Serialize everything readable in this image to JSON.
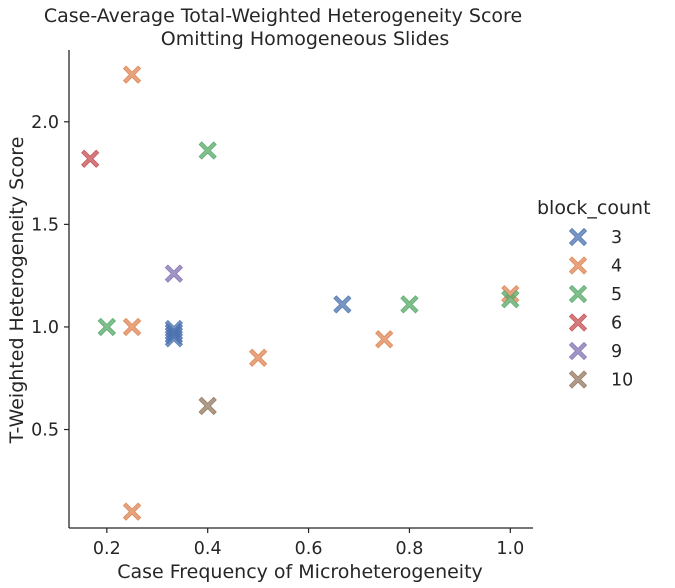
{
  "chart_data": {
    "type": "scatter",
    "title": "Case-Average Total-Weighted Heterogeneity Score",
    "subtitle": "Omitting Homogeneous Slides",
    "xlabel": "Case Frequency of Microheterogeneity",
    "ylabel": "T-Weighted Heterogeneity Score",
    "xlim": [
      0.125,
      1.045
    ],
    "ylim": [
      0.02,
      2.35
    ],
    "xticks": [
      0.2,
      0.4,
      0.6,
      0.8,
      1.0
    ],
    "xtick_labels": [
      "0.2",
      "0.4",
      "0.6",
      "0.8",
      "1.0"
    ],
    "yticks": [
      0.5,
      1.0,
      1.5,
      2.0
    ],
    "ytick_labels": [
      "0.5",
      "1.0",
      "1.5",
      "2.0"
    ],
    "grid": false,
    "marker": "X",
    "legend_title": "block_count",
    "legend_position": "right",
    "series": [
      {
        "name": "3",
        "color": "#4c72b0",
        "points": [
          [
            0.333,
            0.99
          ],
          [
            0.333,
            0.96
          ],
          [
            0.333,
            0.945
          ],
          [
            0.333,
            0.975
          ],
          [
            0.667,
            1.11
          ]
        ]
      },
      {
        "name": "4",
        "color": "#dd8452",
        "points": [
          [
            0.25,
            2.23
          ],
          [
            0.25,
            1.0
          ],
          [
            0.25,
            0.1
          ],
          [
            0.5,
            0.85
          ],
          [
            0.75,
            0.94
          ],
          [
            1.0,
            1.16
          ]
        ]
      },
      {
        "name": "5",
        "color": "#55a868",
        "points": [
          [
            0.4,
            1.86
          ],
          [
            0.2,
            1.0
          ],
          [
            0.8,
            1.11
          ],
          [
            1.0,
            1.135
          ]
        ]
      },
      {
        "name": "6",
        "color": "#c44e52",
        "points": [
          [
            0.167,
            1.82
          ]
        ]
      },
      {
        "name": "9",
        "color": "#8172b3",
        "points": [
          [
            0.333,
            1.26
          ]
        ]
      },
      {
        "name": "10",
        "color": "#937860",
        "points": [
          [
            0.4,
            0.615
          ]
        ]
      }
    ]
  }
}
